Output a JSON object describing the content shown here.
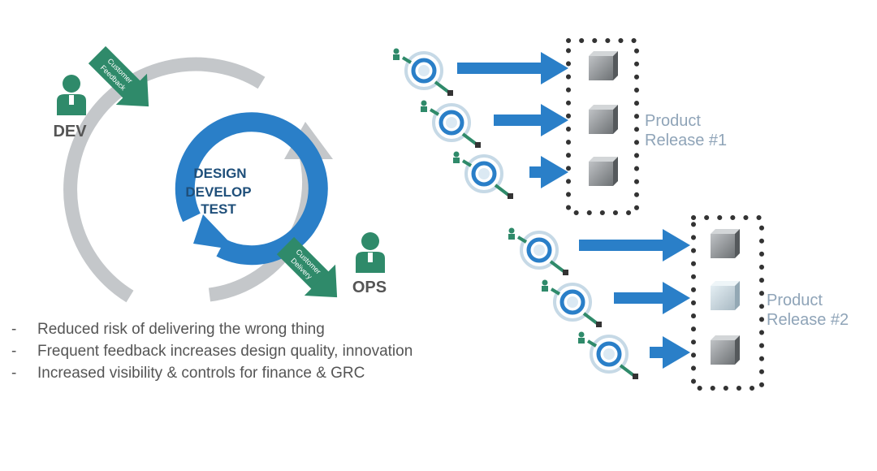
{
  "cycle": {
    "inner_lines": [
      "DESIGN",
      "DEVELOP",
      "TEST"
    ],
    "dev_label": "DEV",
    "ops_label": "OPS",
    "feedback_arrow_lines": [
      "Customer",
      "Feedback"
    ],
    "delivery_arrow_lines": [
      "Customer",
      "Delivery"
    ]
  },
  "releases": [
    {
      "label_lines": [
        "Product",
        "Release #1"
      ]
    },
    {
      "label_lines": [
        "Product",
        "Release #2"
      ]
    }
  ],
  "bullets": [
    {
      "dash": "-",
      "text": "Reduced risk of delivering the wrong thing"
    },
    {
      "dash": "-",
      "text": "Frequent feedback increases design quality, innovation"
    },
    {
      "dash": "-",
      "text": "Increased visibility & controls for finance & GRC"
    }
  ],
  "colors": {
    "blue": "#2a7fc8",
    "gray": "#c4c7ca",
    "green": "#2f8a6a",
    "label_gray": "#8fa4b8",
    "dark_text": "#555555"
  },
  "icons": [
    "person-icon",
    "cycle-icon",
    "cube-icon",
    "arrow-icon",
    "dotted-box-icon"
  ]
}
